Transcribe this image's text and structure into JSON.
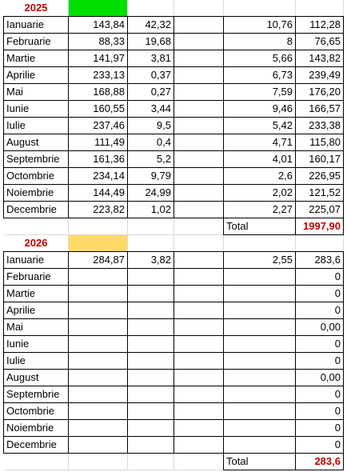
{
  "sections": [
    {
      "year": "2025",
      "rows": [
        [
          "Ianuarie",
          "143,84",
          "42,32",
          null,
          "10,76",
          "112,28"
        ],
        [
          "Februarie",
          "88,33",
          "19,68",
          null,
          "8",
          "76,65"
        ],
        [
          "Martie",
          "141,97",
          "3,81",
          null,
          "5,66",
          "143,82"
        ],
        [
          "Aprilie",
          "233,13",
          "0,37",
          null,
          "6,73",
          "239,49"
        ],
        [
          "Mai",
          "168,88",
          "0,27",
          null,
          "7,59",
          "176,20"
        ],
        [
          "Iunie",
          "160,55",
          "3,44",
          null,
          "9,46",
          "166,57"
        ],
        [
          "Iulie",
          "237,46",
          "9,5",
          null,
          "5,42",
          "233,38"
        ],
        [
          "August",
          "111,49",
          "0,4",
          null,
          "4,71",
          "115,80"
        ],
        [
          "Septembrie",
          "161,36",
          "5,2",
          null,
          "4,01",
          "160,17"
        ],
        [
          "Octombrie",
          "234,14",
          "9,79",
          null,
          "2,6",
          "226,95"
        ],
        [
          "Noiembrie",
          "144,49",
          "24,99",
          null,
          "2,02",
          "121,52"
        ],
        [
          "Decembrie",
          "223,82",
          "1,02",
          null,
          "2,27",
          "225,07"
        ]
      ],
      "total_label": "Total",
      "total": "1997,90"
    },
    {
      "year": "2026",
      "rows": [
        [
          "Ianuarie",
          "284,87",
          "3,82",
          null,
          "2,55",
          "283,6"
        ],
        [
          "Februarie",
          null,
          null,
          null,
          null,
          "0"
        ],
        [
          "Martie",
          null,
          null,
          null,
          null,
          "0"
        ],
        [
          "Aprilie",
          null,
          null,
          null,
          null,
          "0"
        ],
        [
          "Mai",
          null,
          null,
          null,
          null,
          "0,00"
        ],
        [
          "Iunie",
          null,
          null,
          null,
          null,
          "0"
        ],
        [
          "Iulie",
          null,
          null,
          null,
          null,
          "0"
        ],
        [
          "August",
          null,
          null,
          null,
          null,
          "0,00"
        ],
        [
          "Septembrie",
          null,
          null,
          null,
          null,
          "0"
        ],
        [
          "Octombrie",
          null,
          null,
          null,
          null,
          "0"
        ],
        [
          "Noiembrie",
          null,
          null,
          null,
          null,
          "0"
        ],
        [
          "Decembrie",
          null,
          null,
          null,
          null,
          "0"
        ]
      ],
      "total_label": "Total",
      "total": "283,6"
    }
  ]
}
